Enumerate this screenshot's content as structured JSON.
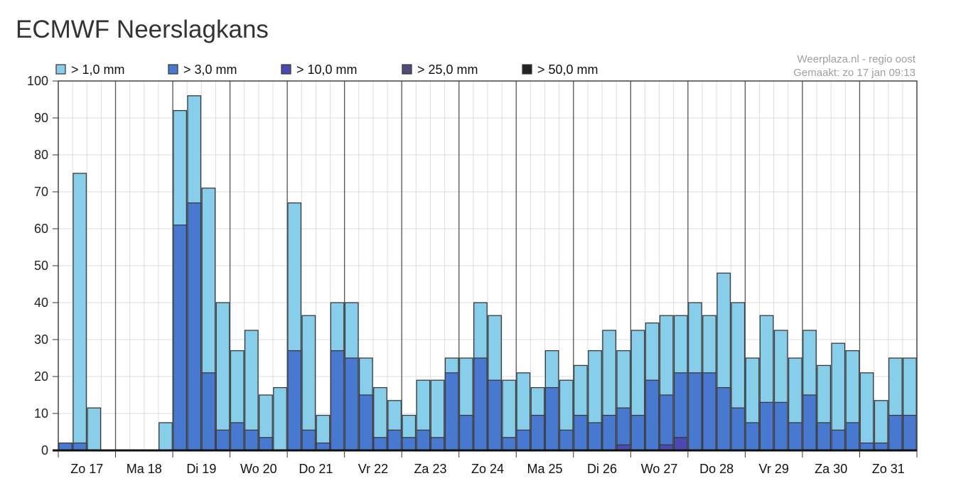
{
  "page": {
    "title": "ECMWF Neerslagkans"
  },
  "credit": {
    "source": "Weerplaza.nl - regio oost",
    "made": "Gemaakt: zo 17 jan 09:13"
  },
  "chart_data": {
    "type": "bar",
    "stacked": "overlapping",
    "title": "ECMWF Neerslagkans",
    "xlabel": "",
    "ylabel": "",
    "ylim": [
      0,
      100
    ],
    "yticks": [
      0,
      10,
      20,
      30,
      40,
      50,
      60,
      70,
      80,
      90,
      100
    ],
    "grid": true,
    "legend_position": "top",
    "days": [
      "Zo 17",
      "Ma 18",
      "Di 19",
      "Wo 20",
      "Do 21",
      "Vr 22",
      "Za 23",
      "Zo 24",
      "Ma 25",
      "Di 26",
      "Wo 27",
      "Do 28",
      "Vr 29",
      "Za 30",
      "Zo 31"
    ],
    "series": [
      {
        "name": "> 1,0 mm",
        "color": "#87ceeb",
        "values": [
          2,
          75,
          11.5,
          0,
          0,
          0,
          0,
          7.5,
          92,
          96,
          71,
          40,
          27,
          32.5,
          15,
          17,
          67,
          36.5,
          9.5,
          40,
          40,
          25,
          17,
          13.5,
          9.5,
          19,
          19,
          25,
          25,
          40,
          36.5,
          19,
          21,
          17,
          27,
          19,
          23,
          27,
          32.5,
          27,
          32.5,
          34.5,
          36.5,
          36.5,
          40,
          36.5,
          48,
          40,
          25,
          36.5,
          32.5,
          25,
          32.5,
          23,
          29,
          27,
          21,
          13.5,
          25,
          25
        ]
      },
      {
        "name": "> 3,0 mm",
        "color": "#4779d1",
        "values": [
          2,
          2,
          0,
          0,
          0,
          0,
          0,
          0,
          61,
          67,
          21,
          5.5,
          7.5,
          5.5,
          3.5,
          0,
          27,
          5.5,
          2,
          27,
          25,
          15,
          3.5,
          5.5,
          3.5,
          5.5,
          3.5,
          21,
          9.5,
          25,
          19,
          3.5,
          5.5,
          9.5,
          17,
          5.5,
          9.5,
          7.5,
          9.5,
          11.5,
          9.5,
          19,
          15,
          21,
          21,
          21,
          17,
          11.5,
          7.5,
          13,
          13,
          7.5,
          15,
          7.5,
          5.5,
          7.5,
          2,
          2,
          9.5,
          9.5
        ]
      },
      {
        "name": "> 10,0 mm",
        "color": "#4a4ab0",
        "values": [
          0,
          0,
          0,
          0,
          0,
          0,
          0,
          0,
          0,
          0,
          0,
          0,
          0,
          0,
          0,
          0,
          0,
          0,
          0,
          0,
          0,
          0,
          0,
          0,
          0,
          0,
          0,
          0,
          0,
          0,
          0,
          0,
          0,
          0,
          0,
          0,
          0,
          0,
          0,
          1.5,
          0,
          0,
          1.5,
          3.5,
          0,
          0,
          0,
          0,
          0,
          0,
          0,
          0,
          0,
          0,
          0,
          0,
          0,
          0,
          0,
          0
        ]
      },
      {
        "name": "> 25,0 mm",
        "color": "#4d4d7a",
        "values": []
      },
      {
        "name": "> 50,0 mm",
        "color": "#222222",
        "values": []
      }
    ]
  }
}
